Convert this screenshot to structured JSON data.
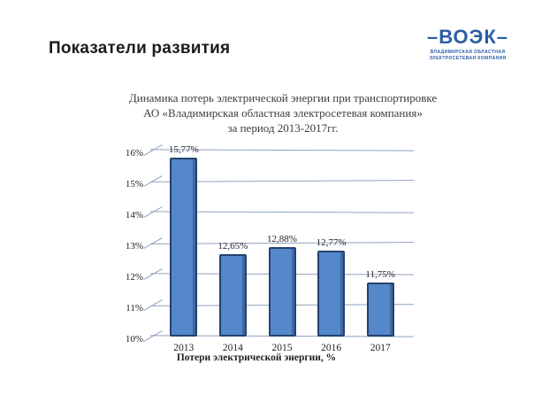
{
  "header": {
    "title": "Показатели развития"
  },
  "logo": {
    "wordmark": "–ВОЭК–",
    "subtitle_line1": "ВЛАДИМИРСКАЯ ОБЛАСТНАЯ",
    "subtitle_line2": "ЭЛЕКТРОСЕТЕВАЯ КОМПАНИЯ",
    "color": "#2a5da8"
  },
  "chart_data": {
    "type": "bar",
    "title": "Динамика потерь электрической энергии при транспортировке АО «Владимирская областная электросетевая компания» за период 2013-2017гг.",
    "title_lines": [
      "Динамика потерь электрической энергии при транспортировке",
      "АО «Владимирская областная электросетевая компания»",
      "за период 2013-2017гг."
    ],
    "categories": [
      "2013",
      "2014",
      "2015",
      "2016",
      "2017"
    ],
    "values": [
      15.77,
      12.65,
      12.88,
      12.77,
      11.75
    ],
    "value_labels": [
      "15,77%",
      "12,65%",
      "12,88%",
      "12,77%",
      "11,75%"
    ],
    "xlabel": "Потери электрической энергии, %",
    "ylabel": "",
    "ylim": [
      10,
      16
    ],
    "ytick_labels": [
      "10%",
      "11%",
      "12%",
      "13%",
      "14%",
      "15%",
      "16%"
    ],
    "grid": true,
    "legend": false,
    "bar_color": "#5587cb",
    "bar_border_color": "#24426e",
    "gridline_color": "#8fa2bd"
  }
}
